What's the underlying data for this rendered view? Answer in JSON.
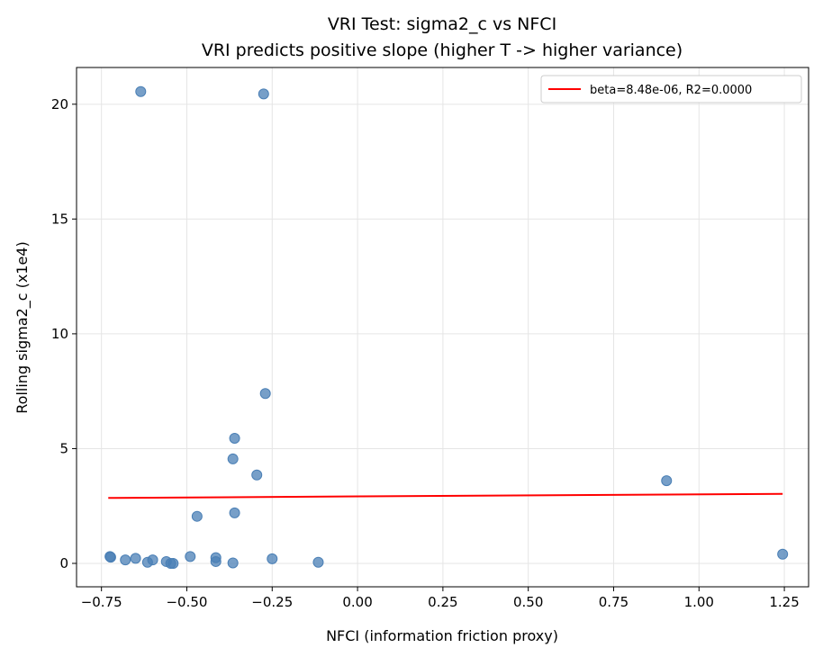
{
  "chart_data": {
    "type": "scatter",
    "title": "VRI Test: sigma2_c vs NFCI",
    "subtitle": "VRI predicts positive slope (higher T -> higher variance)",
    "xlabel": "NFCI (information friction proxy)",
    "ylabel": "Rolling sigma2_c (x1e4)",
    "xlim": [
      -0.823,
      1.321
    ],
    "ylim": [
      -1.02,
      21.6
    ],
    "xticks": [
      -0.75,
      -0.5,
      -0.25,
      0.0,
      0.25,
      0.5,
      0.75,
      1.0,
      1.25
    ],
    "xtick_labels": [
      "−0.75",
      "−0.50",
      "−0.25",
      "0.00",
      "0.25",
      "0.50",
      "0.75",
      "1.00",
      "1.25"
    ],
    "yticks": [
      0,
      5,
      10,
      15,
      20
    ],
    "ytick_labels": [
      "0",
      "5",
      "10",
      "15",
      "20"
    ],
    "grid": true,
    "legend_placement": "top-right",
    "point_color": "#4a7fb5",
    "line_color": "#ff0000",
    "points": [
      [
        -0.635,
        20.55
      ],
      [
        -0.275,
        20.45
      ],
      [
        -0.27,
        7.4
      ],
      [
        -0.36,
        5.45
      ],
      [
        -0.365,
        4.55
      ],
      [
        -0.295,
        3.85
      ],
      [
        -0.47,
        2.05
      ],
      [
        -0.36,
        2.2
      ],
      [
        0.905,
        3.6
      ],
      [
        1.245,
        0.4
      ],
      [
        -0.725,
        0.3
      ],
      [
        -0.723,
        0.27
      ],
      [
        -0.68,
        0.15
      ],
      [
        -0.65,
        0.22
      ],
      [
        -0.615,
        0.05
      ],
      [
        -0.6,
        0.15
      ],
      [
        -0.56,
        0.08
      ],
      [
        -0.547,
        0.0
      ],
      [
        -0.54,
        0.0
      ],
      [
        -0.49,
        0.3
      ],
      [
        -0.415,
        0.25
      ],
      [
        -0.415,
        0.08
      ],
      [
        -0.365,
        0.02
      ],
      [
        -0.25,
        0.2
      ],
      [
        -0.115,
        0.05
      ]
    ],
    "fit_line": {
      "name": "beta=8.48e-06, R2=0.0000",
      "x": [
        -0.73,
        1.245
      ],
      "y": [
        2.85,
        3.03
      ]
    }
  }
}
